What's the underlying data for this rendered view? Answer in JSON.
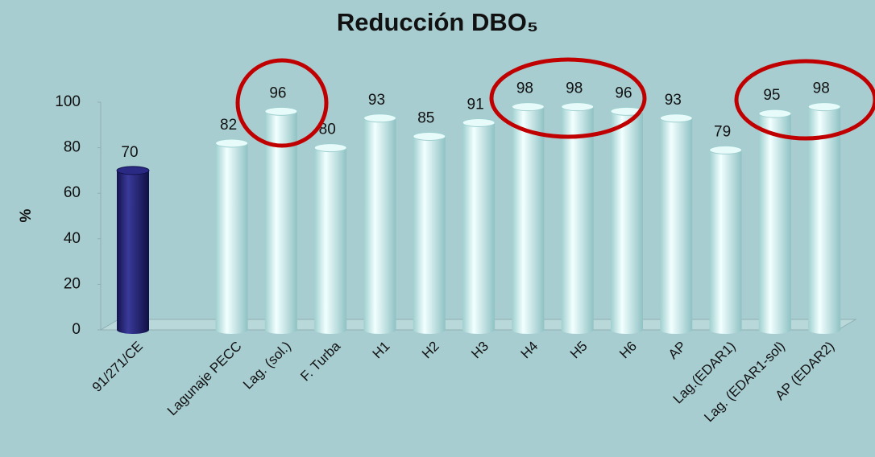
{
  "chart_data": {
    "type": "bar",
    "title": "Reducción DBO₅",
    "y_label": "%",
    "categories": [
      "91/271/CE",
      null,
      "Lagunaje PECC",
      "Lag. (sol.)",
      "F. Turba",
      "H1",
      "H2",
      "H3",
      "H4",
      "H5",
      "H6",
      "AP",
      "Lag.(EDAR1)",
      "Lag. (EDAR1-sol)",
      "AP (EDAR2)"
    ],
    "values": [
      70,
      null,
      82,
      96,
      80,
      93,
      85,
      91,
      98,
      98,
      96,
      93,
      79,
      95,
      98
    ],
    "colors": [
      "#1f1f70",
      null,
      "#d6f3f3",
      "#d6f3f3",
      "#d6f3f3",
      "#d6f3f3",
      "#d6f3f3",
      "#d6f3f3",
      "#d6f3f3",
      "#d6f3f3",
      "#d6f3f3",
      "#d6f3f3",
      "#d6f3f3",
      "#d6f3f3",
      "#d6f3f3"
    ],
    "ylim": [
      0,
      100
    ],
    "yticks": [
      0,
      20,
      40,
      60,
      80,
      100
    ]
  }
}
